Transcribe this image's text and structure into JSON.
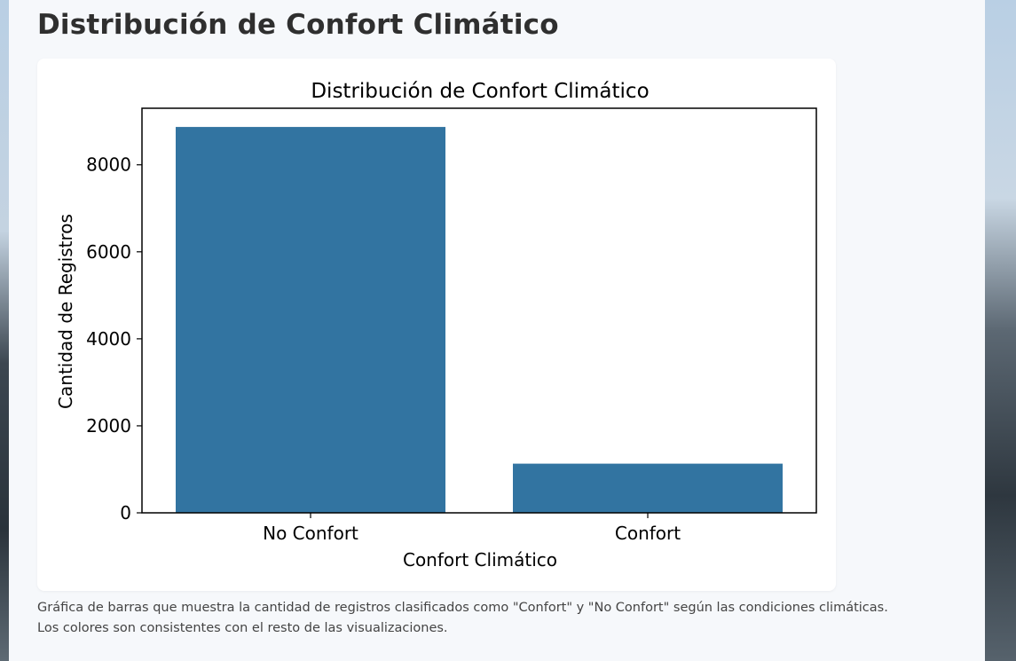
{
  "page": {
    "title": "Distribución de Confort Climático",
    "caption_line1": "Gráfica de barras que muestra la cantidad de registros clasificados como \"Confort\" y \"No Confort\" según las condiciones climáticas.",
    "caption_line2": "Los colores son consistentes con el resto de las visualizaciones."
  },
  "chart_data": {
    "type": "bar",
    "title": "Distribución de Confort Climático",
    "xlabel": "Confort Climático",
    "ylabel": "Cantidad de Registros",
    "categories": [
      "No Confort",
      "Confort"
    ],
    "values": [
      8870,
      1130
    ],
    "ylim": [
      0,
      9300
    ],
    "yticks": [
      0,
      2000,
      4000,
      6000,
      8000
    ],
    "bar_color": "#3274a1",
    "grid": false,
    "legend": "none"
  }
}
